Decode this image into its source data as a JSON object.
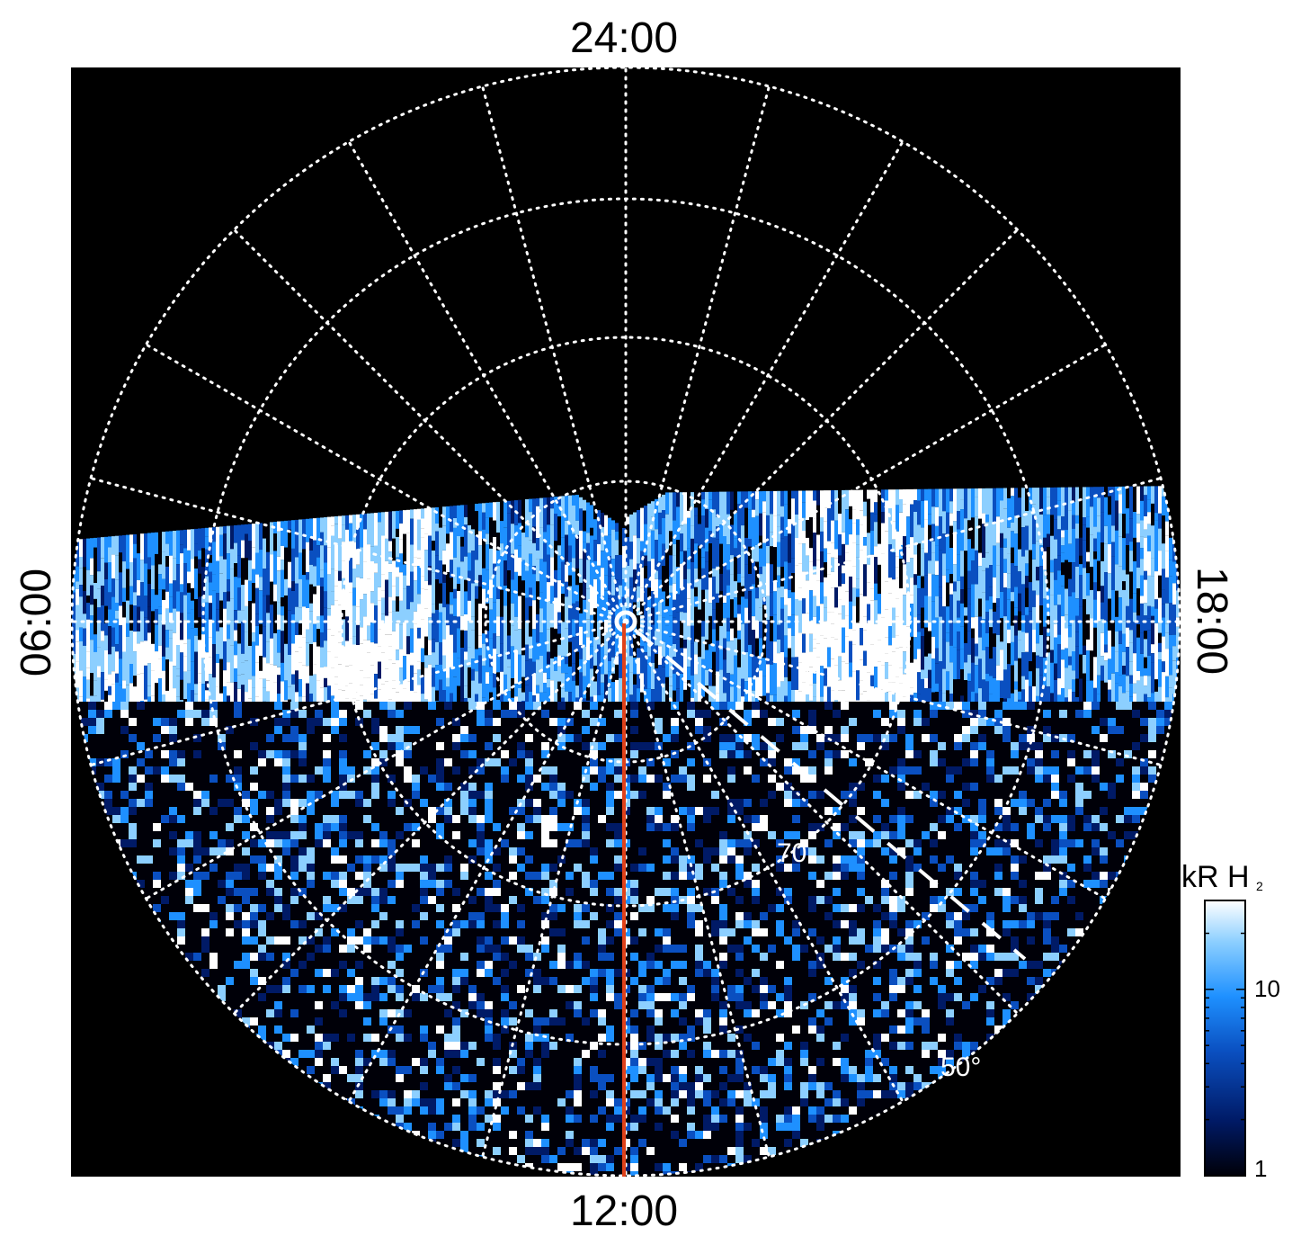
{
  "local_time_labels": {
    "top": "24:00",
    "bottom": "12:00",
    "left": "06:00",
    "right": "18:00"
  },
  "latitude_labels": {
    "inner": "70",
    "outer": "50°"
  },
  "colorbar": {
    "title_main": "kR H",
    "title_sub": "2",
    "tick_labels": [
      "10",
      "1"
    ],
    "colors": [
      "#000008",
      "#001a66",
      "#0a4fc0",
      "#1e90ff",
      "#8ccfff",
      "#ffffff"
    ]
  },
  "colors": {
    "background": "#000000",
    "grid": "#ffffff",
    "meridian_line": "#e0421a"
  }
}
